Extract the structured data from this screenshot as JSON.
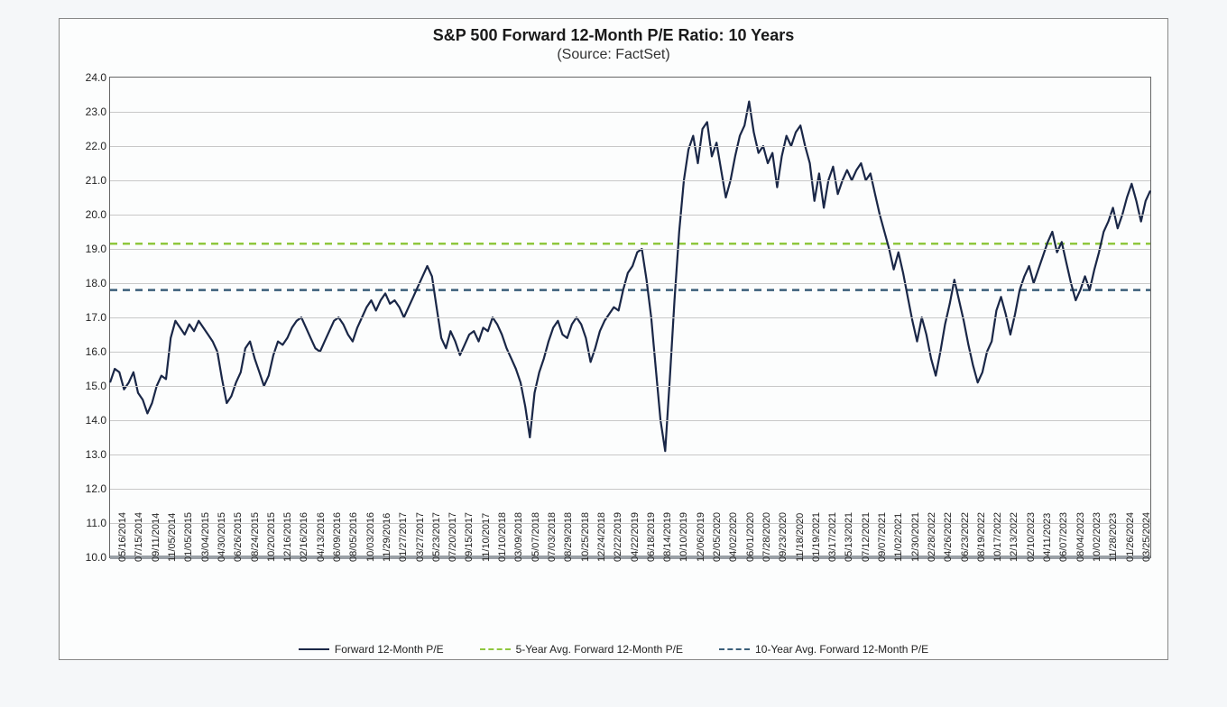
{
  "chart": {
    "type": "line",
    "title": "S&P 500 Forward 12-Month P/E Ratio: 10 Years",
    "subtitle": "(Source: FactSet)",
    "title_fontsize": 18,
    "subtitle_fontsize": 16,
    "background_color": "#fcfdfd",
    "border_color": "#888888",
    "grid_color": "#c8c8c8",
    "axis_color": "#666666",
    "text_color": "#222222",
    "y": {
      "min": 10.0,
      "max": 24.0,
      "step": 1.0,
      "ticks": [
        "10.0",
        "11.0",
        "12.0",
        "13.0",
        "14.0",
        "15.0",
        "16.0",
        "17.0",
        "18.0",
        "19.0",
        "20.0",
        "21.0",
        "22.0",
        "23.0",
        "24.0"
      ],
      "tick_fontsize": 12
    },
    "x": {
      "labels": [
        "05/16/2014",
        "07/15/2014",
        "09/11/2014",
        "11/05/2014",
        "01/05/2015",
        "03/04/2015",
        "04/30/2015",
        "06/26/2015",
        "08/24/2015",
        "10/20/2015",
        "12/16/2015",
        "02/16/2016",
        "04/13/2016",
        "06/09/2016",
        "08/05/2016",
        "10/03/2016",
        "11/29/2016",
        "01/27/2017",
        "03/27/2017",
        "05/23/2017",
        "07/20/2017",
        "09/15/2017",
        "11/10/2017",
        "01/10/2018",
        "03/09/2018",
        "05/07/2018",
        "07/03/2018",
        "08/29/2018",
        "10/25/2018",
        "12/24/2018",
        "02/22/2019",
        "04/22/2019",
        "06/18/2019",
        "08/14/2019",
        "10/10/2019",
        "12/06/2019",
        "02/05/2020",
        "04/02/2020",
        "06/01/2020",
        "07/28/2020",
        "09/23/2020",
        "11/18/2020",
        "01/19/2021",
        "03/17/2021",
        "05/13/2021",
        "07/12/2021",
        "09/07/2021",
        "11/02/2021",
        "12/30/2021",
        "02/28/2022",
        "04/26/2022",
        "06/23/2022",
        "08/19/2022",
        "10/17/2022",
        "12/13/2022",
        "02/10/2023",
        "04/11/2023",
        "06/07/2023",
        "08/04/2023",
        "10/02/2023",
        "11/28/2023",
        "01/26/2024",
        "03/25/2024"
      ],
      "tick_fontsize": 11,
      "rotation_deg": -90
    },
    "series": {
      "main": {
        "label": "Forward 12-Month P/E",
        "color": "#1a2747",
        "width": 2.2,
        "dash": "none",
        "data": [
          15.1,
          15.5,
          15.4,
          14.9,
          15.1,
          15.4,
          14.8,
          14.6,
          14.2,
          14.5,
          15.0,
          15.3,
          15.2,
          16.4,
          16.9,
          16.7,
          16.5,
          16.8,
          16.6,
          16.9,
          16.7,
          16.5,
          16.3,
          16.0,
          15.2,
          14.5,
          14.7,
          15.1,
          15.4,
          16.1,
          16.3,
          15.8,
          15.4,
          15.0,
          15.3,
          15.9,
          16.3,
          16.2,
          16.4,
          16.7,
          16.9,
          17.0,
          16.7,
          16.4,
          16.1,
          16.0,
          16.3,
          16.6,
          16.9,
          17.0,
          16.8,
          16.5,
          16.3,
          16.7,
          17.0,
          17.3,
          17.5,
          17.2,
          17.5,
          17.7,
          17.4,
          17.5,
          17.3,
          17.0,
          17.3,
          17.6,
          17.9,
          18.2,
          18.5,
          18.2,
          17.3,
          16.4,
          16.1,
          16.6,
          16.3,
          15.9,
          16.2,
          16.5,
          16.6,
          16.3,
          16.7,
          16.6,
          17.0,
          16.8,
          16.5,
          16.1,
          15.8,
          15.5,
          15.1,
          14.4,
          13.5,
          14.8,
          15.4,
          15.8,
          16.3,
          16.7,
          16.9,
          16.5,
          16.4,
          16.8,
          17.0,
          16.8,
          16.4,
          15.7,
          16.1,
          16.6,
          16.9,
          17.1,
          17.3,
          17.2,
          17.8,
          18.3,
          18.5,
          18.9,
          19.0,
          18.1,
          17.0,
          15.5,
          14.0,
          13.1,
          15.2,
          17.5,
          19.5,
          21.0,
          21.9,
          22.3,
          21.5,
          22.5,
          22.7,
          21.7,
          22.1,
          21.3,
          20.5,
          21.0,
          21.7,
          22.3,
          22.6,
          23.3,
          22.4,
          21.8,
          22.0,
          21.5,
          21.8,
          20.8,
          21.7,
          22.3,
          22.0,
          22.4,
          22.6,
          22.0,
          21.5,
          20.4,
          21.2,
          20.2,
          21.0,
          21.4,
          20.6,
          21.0,
          21.3,
          21.0,
          21.3,
          21.5,
          21.0,
          21.2,
          20.6,
          20.0,
          19.5,
          19.0,
          18.4,
          18.9,
          18.3,
          17.6,
          16.9,
          16.3,
          17.0,
          16.5,
          15.8,
          15.3,
          16.0,
          16.8,
          17.4,
          18.1,
          17.5,
          16.9,
          16.2,
          15.6,
          15.1,
          15.4,
          16.0,
          16.3,
          17.2,
          17.6,
          17.1,
          16.5,
          17.1,
          17.8,
          18.2,
          18.5,
          18.0,
          18.4,
          18.8,
          19.2,
          19.5,
          18.9,
          19.2,
          18.6,
          18.0,
          17.5,
          17.8,
          18.2,
          17.8,
          18.4,
          18.9,
          19.5,
          19.8,
          20.2,
          19.6,
          20.0,
          20.5,
          20.9,
          20.4,
          19.8,
          20.4,
          20.7
        ]
      },
      "avg5": {
        "label": "5-Year Avg. Forward 12-Month P/E",
        "color": "#8fc73e",
        "width": 2.5,
        "dash": "8,6",
        "value": 19.15
      },
      "avg10": {
        "label": "10-Year Avg. Forward 12-Month P/E",
        "color": "#3b5f7a",
        "width": 2.5,
        "dash": "8,6",
        "value": 17.8
      }
    },
    "legend": {
      "position": "bottom",
      "fontsize": 12,
      "items": [
        "main",
        "avg5",
        "avg10"
      ]
    }
  }
}
